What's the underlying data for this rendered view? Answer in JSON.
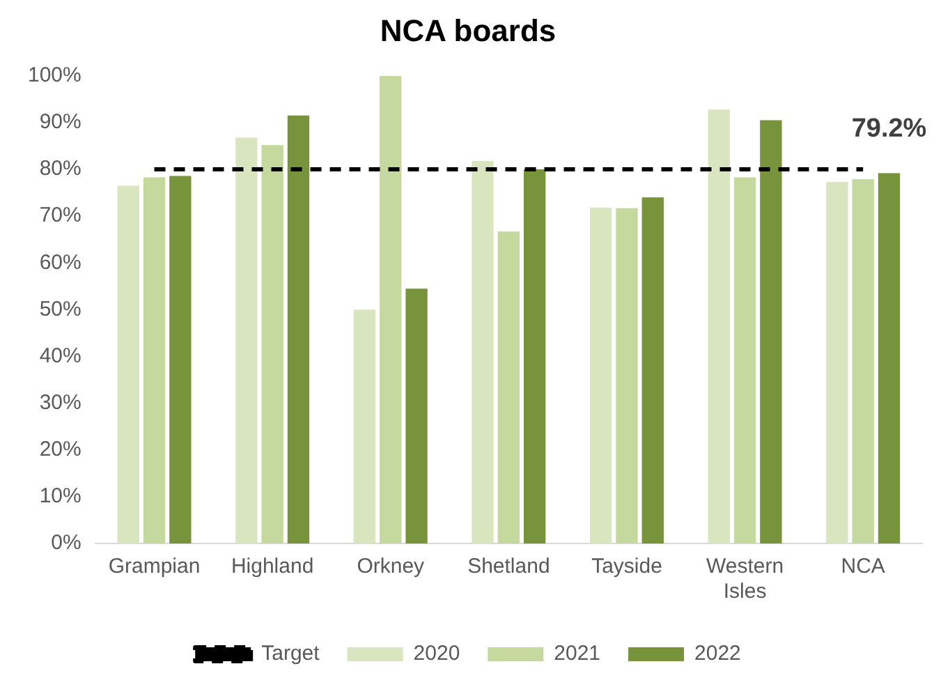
{
  "chart_data": {
    "type": "bar",
    "title": "NCA boards",
    "categories": [
      "Grampian",
      "Highland",
      "Orkney",
      "Shetland",
      "Tayside",
      "Western Isles",
      "NCA"
    ],
    "series": [
      {
        "name": "2020",
        "color": "#d9e5bf",
        "values": [
          76.5,
          86.8,
          50,
          81.8,
          71.8,
          92.8,
          77.3
        ]
      },
      {
        "name": "2021",
        "color": "#c5d89d",
        "values": [
          78.3,
          85.2,
          100,
          66.7,
          71.7,
          78.3,
          77.9
        ]
      },
      {
        "name": "2022",
        "color": "#77933c",
        "values": [
          78.6,
          91.5,
          54.5,
          80,
          74,
          90.5,
          79.2
        ],
        "value_labels": [
          null,
          null,
          null,
          null,
          null,
          null,
          "79.2%"
        ]
      },
      {
        "name": "Target",
        "type": "line",
        "color": "#000000",
        "line_style": "dashed",
        "marker": "none",
        "values": [
          80,
          80,
          80,
          80,
          80,
          80,
          80
        ]
      }
    ],
    "ylim": [
      0,
      100
    ],
    "yticks": [
      {
        "value": 0,
        "label": "0%"
      },
      {
        "value": 10,
        "label": "10%"
      },
      {
        "value": 20,
        "label": "20%"
      },
      {
        "value": 30,
        "label": "30%"
      },
      {
        "value": 40,
        "label": "40%"
      },
      {
        "value": 50,
        "label": "50%"
      },
      {
        "value": 60,
        "label": "60%"
      },
      {
        "value": 70,
        "label": "70%"
      },
      {
        "value": 80,
        "label": "80%"
      },
      {
        "value": 90,
        "label": "90%"
      },
      {
        "value": 100,
        "label": "100%"
      }
    ],
    "grid": false,
    "legend": "bottom"
  }
}
